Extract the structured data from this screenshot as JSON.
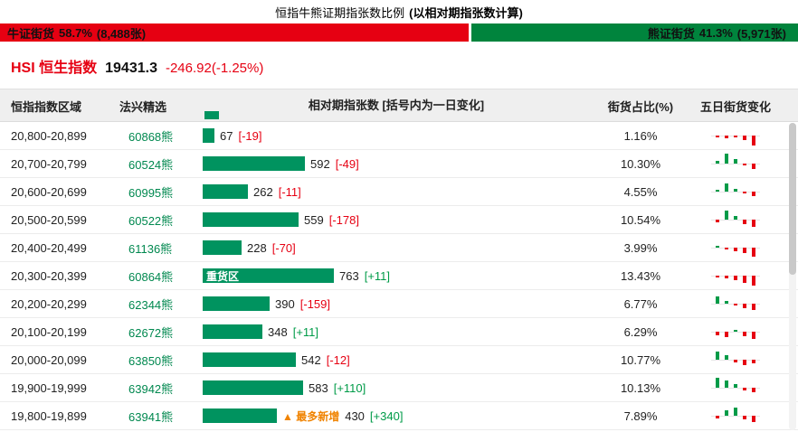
{
  "title": {
    "main": "恒指牛熊证期指张数比例",
    "note": "(以相对期指张数计算)"
  },
  "ratio_bar": {
    "bull": {
      "label": "牛证街货",
      "pct": "58.7%",
      "count": "(8,488张)",
      "width_pct": 58.7
    },
    "bear": {
      "label": "熊证街货",
      "pct": "41.3%",
      "count": "(5,971张)",
      "width_pct": 41.3
    }
  },
  "index": {
    "name": "HSI 恒生指数",
    "value": "19431.3",
    "change": "-246.92(-1.25%)"
  },
  "colors": {
    "bull": "#e60012",
    "bear": "#00843d",
    "bar": "#00935f",
    "up": "#009b48",
    "down": "#e60012",
    "highlight": "#f08300"
  },
  "table": {
    "headers": [
      "恒指指数区域",
      "法兴精选",
      "相对期指张数 [括号内为一日变化]",
      "街货占比(%)",
      "五日街货变化"
    ],
    "rows": [
      {
        "range": "20,800-20,899",
        "code": "60868熊",
        "value": 67,
        "change": "[-19]",
        "direction": "down",
        "pct": "1.16%",
        "bar_tag": "",
        "new_tag": "",
        "spark": [
          {
            "h": 2,
            "c": "down"
          },
          {
            "h": 3,
            "c": "down"
          },
          {
            "h": 2,
            "c": "down"
          },
          {
            "h": 5,
            "c": "down"
          },
          {
            "h": 11,
            "c": "down"
          }
        ]
      },
      {
        "range": "20,700-20,799",
        "code": "60524熊",
        "value": 592,
        "change": "[-49]",
        "direction": "down",
        "pct": "10.30%",
        "bar_tag": "",
        "new_tag": "",
        "spark": [
          {
            "h": 3,
            "c": "up"
          },
          {
            "h": 11,
            "c": "up"
          },
          {
            "h": 5,
            "c": "up"
          },
          {
            "h": 2,
            "c": "down"
          },
          {
            "h": 6,
            "c": "down"
          }
        ]
      },
      {
        "range": "20,600-20,699",
        "code": "60995熊",
        "value": 262,
        "change": "[-11]",
        "direction": "down",
        "pct": "4.55%",
        "bar_tag": "",
        "new_tag": "",
        "spark": [
          {
            "h": 2,
            "c": "up"
          },
          {
            "h": 9,
            "c": "up"
          },
          {
            "h": 3,
            "c": "up"
          },
          {
            "h": 2,
            "c": "down"
          },
          {
            "h": 5,
            "c": "down"
          }
        ]
      },
      {
        "range": "20,500-20,599",
        "code": "60522熊",
        "value": 559,
        "change": "[-178]",
        "direction": "down",
        "pct": "10.54%",
        "bar_tag": "",
        "new_tag": "",
        "spark": [
          {
            "h": 3,
            "c": "down"
          },
          {
            "h": 10,
            "c": "up"
          },
          {
            "h": 4,
            "c": "up"
          },
          {
            "h": 5,
            "c": "down"
          },
          {
            "h": 8,
            "c": "down"
          }
        ]
      },
      {
        "range": "20,400-20,499",
        "code": "61136熊",
        "value": 228,
        "change": "[-70]",
        "direction": "down",
        "pct": "3.99%",
        "bar_tag": "",
        "new_tag": "",
        "spark": [
          {
            "h": 2,
            "c": "up"
          },
          {
            "h": 2,
            "c": "down"
          },
          {
            "h": 4,
            "c": "down"
          },
          {
            "h": 6,
            "c": "down"
          },
          {
            "h": 10,
            "c": "down"
          }
        ]
      },
      {
        "range": "20,300-20,399",
        "code": "60864熊",
        "value": 763,
        "change": "[+11]",
        "direction": "up",
        "pct": "13.43%",
        "bar_tag": "重货区",
        "new_tag": "",
        "spark": [
          {
            "h": 2,
            "c": "down"
          },
          {
            "h": 3,
            "c": "down"
          },
          {
            "h": 5,
            "c": "down"
          },
          {
            "h": 8,
            "c": "down"
          },
          {
            "h": 11,
            "c": "down"
          }
        ]
      },
      {
        "range": "20,200-20,299",
        "code": "62344熊",
        "value": 390,
        "change": "[-159]",
        "direction": "down",
        "pct": "6.77%",
        "bar_tag": "",
        "new_tag": "",
        "spark": [
          {
            "h": 8,
            "c": "up"
          },
          {
            "h": 3,
            "c": "up"
          },
          {
            "h": 2,
            "c": "down"
          },
          {
            "h": 5,
            "c": "down"
          },
          {
            "h": 7,
            "c": "down"
          }
        ]
      },
      {
        "range": "20,100-20,199",
        "code": "62672熊",
        "value": 348,
        "change": "[+11]",
        "direction": "up",
        "pct": "6.29%",
        "bar_tag": "",
        "new_tag": "",
        "spark": [
          {
            "h": 4,
            "c": "down"
          },
          {
            "h": 6,
            "c": "down"
          },
          {
            "h": 2,
            "c": "up"
          },
          {
            "h": 5,
            "c": "down"
          },
          {
            "h": 8,
            "c": "down"
          }
        ]
      },
      {
        "range": "20,000-20,099",
        "code": "63850熊",
        "value": 542,
        "change": "[-12]",
        "direction": "down",
        "pct": "10.77%",
        "bar_tag": "",
        "new_tag": "",
        "spark": [
          {
            "h": 9,
            "c": "up"
          },
          {
            "h": 5,
            "c": "up"
          },
          {
            "h": 3,
            "c": "down"
          },
          {
            "h": 6,
            "c": "down"
          },
          {
            "h": 4,
            "c": "down"
          }
        ]
      },
      {
        "range": "19,900-19,999",
        "code": "63942熊",
        "value": 583,
        "change": "[+110]",
        "direction": "up",
        "pct": "10.13%",
        "bar_tag": "",
        "new_tag": "",
        "spark": [
          {
            "h": 11,
            "c": "up"
          },
          {
            "h": 8,
            "c": "up"
          },
          {
            "h": 4,
            "c": "up"
          },
          {
            "h": 3,
            "c": "down"
          },
          {
            "h": 5,
            "c": "down"
          }
        ]
      },
      {
        "range": "19,800-19,899",
        "code": "63941熊",
        "value": 430,
        "change": "[+340]",
        "direction": "up",
        "pct": "7.89%",
        "bar_tag": "",
        "new_tag": "▲ 最多新增",
        "spark": [
          {
            "h": 3,
            "c": "down"
          },
          {
            "h": 6,
            "c": "up"
          },
          {
            "h": 9,
            "c": "up"
          },
          {
            "h": 4,
            "c": "down"
          },
          {
            "h": 7,
            "c": "down"
          }
        ]
      }
    ]
  },
  "chart_data": {
    "type": "bar",
    "orientation": "horizontal",
    "title": "恒指牛熊证期指张数比例 (以相对期指张数计算)",
    "categories": [
      "20,800-20,899",
      "20,700-20,799",
      "20,600-20,699",
      "20,500-20,599",
      "20,400-20,499",
      "20,300-20,399",
      "20,200-20,299",
      "20,100-20,199",
      "20,000-20,099",
      "19,900-19,999",
      "19,800-19,899"
    ],
    "codes": [
      "60868熊",
      "60524熊",
      "60995熊",
      "60522熊",
      "61136熊",
      "60864熊",
      "62344熊",
      "62672熊",
      "63850熊",
      "63942熊",
      "63941熊"
    ],
    "values": [
      67,
      592,
      262,
      559,
      228,
      763,
      390,
      348,
      542,
      583,
      430
    ],
    "one_day_change": [
      -19,
      -49,
      -11,
      -178,
      -70,
      11,
      -159,
      11,
      -12,
      110,
      340
    ],
    "outstanding_pct": [
      1.16,
      10.3,
      4.55,
      10.54,
      3.99,
      13.43,
      6.77,
      6.29,
      10.77,
      10.13,
      7.89
    ],
    "xlabel": "相对期指张数 [括号内为一日变化]",
    "ylabel": "恒指指数区域",
    "bull_pct": 58.7,
    "bull_contracts": 8488,
    "bear_pct": 41.3,
    "bear_contracts": 5971,
    "index_value": 19431.3,
    "index_change": -246.92,
    "index_change_pct": -1.25,
    "annotations": [
      "重货区",
      "▲ 最多新增"
    ]
  }
}
